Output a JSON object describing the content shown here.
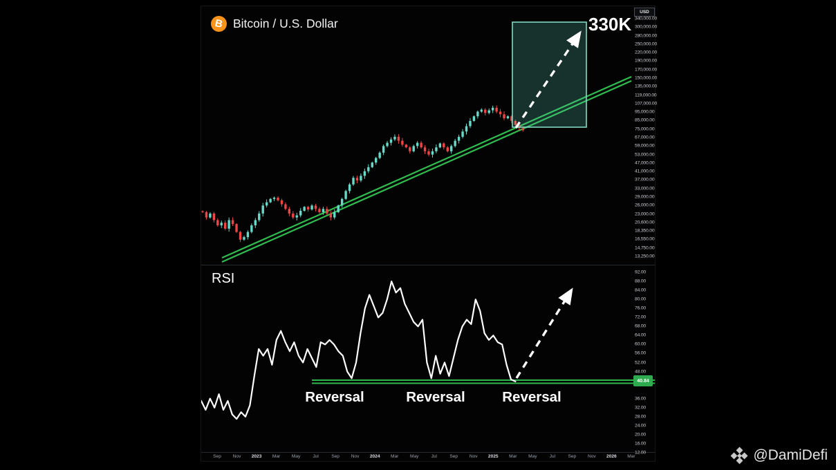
{
  "window": {
    "symbol_title": "Bitcoin / U.S. Dollar",
    "btc_glyph": "B",
    "currency_label": "USD"
  },
  "annotations": {
    "price_target": "330K",
    "rsi_label": "RSI",
    "rsi_current_value": "40.84",
    "reversal_labels": [
      "Reversal",
      "Reversal",
      "Reversal"
    ]
  },
  "watermark": {
    "handle": "@DamiDefi",
    "icon": "binance-diamond-icon"
  },
  "colors": {
    "background": "#000000",
    "up_candle": "#66d9c8",
    "down_candle": "#ef4545",
    "trendline_green": "#2fbc4f",
    "support_green": "#2db84d",
    "projection_box_border": "#82dac5",
    "projection_box_fill": "rgba(95,220,190,0.22)",
    "arrow_white": "#ffffff",
    "rsi_line": "#ffffff",
    "btc_orange": "#f7931a",
    "rsi_badge_bg": "#2dab4e",
    "axis_text": "#c6c9d0"
  },
  "price_axis_labels": [
    "340,000.00",
    "300,000.00",
    "280,000.00",
    "250,000.00",
    "220,000.00",
    "190,000.00",
    "170,000.00",
    "150,000.00",
    "135,000.00",
    "119,000.00",
    "107,000.00",
    "95,000.00",
    "85,000.00",
    "75,000.00",
    "67,000.00",
    "59,000.00",
    "53,000.00",
    "47,000.00",
    "41,000.00",
    "37,000.00",
    "33,000.00",
    "29,000.00",
    "26,000.00",
    "23,000.00",
    "20,600.00",
    "18,350.00",
    "16,550.00",
    "14,750.00",
    "13,250.00"
  ],
  "rsi_axis_labels": [
    "92.00",
    "88.00",
    "84.00",
    "80.00",
    "76.00",
    "72.00",
    "68.00",
    "64.00",
    "60.00",
    "56.00",
    "52.00",
    "48.00",
    "",
    "",
    "36.00",
    "32.00",
    "28.00",
    "24.00",
    "20.00",
    "16.00",
    "12.00"
  ],
  "time_axis_labels": [
    "Sep",
    "Nov",
    "2023",
    "Mar",
    "May",
    "Jul",
    "Sep",
    "Nov",
    "2024",
    "Mar",
    "May",
    "Jul",
    "Sep",
    "Nov",
    "2025",
    "Mar",
    "May",
    "Jul",
    "Sep",
    "Nov",
    "2026",
    "Mar"
  ],
  "chart_data": {
    "type": "candlestick",
    "title": "Bitcoin / U.S. Dollar",
    "legend_position": "top-left",
    "grid": false,
    "price_panel": {
      "y_scale": "log",
      "y_axis_top_usd": 340000,
      "y_axis_bottom_usd": 13250,
      "weekly_closes_usd": [
        24250,
        22550,
        23800,
        21750,
        20250,
        21000,
        19350,
        21750,
        20600,
        18500,
        16650,
        17250,
        18500,
        20250,
        21750,
        23800,
        26550,
        27750,
        29050,
        29550,
        28500,
        27000,
        25350,
        23800,
        22550,
        23200,
        24700,
        26050,
        25150,
        26550,
        25350,
        24250,
        25350,
        23800,
        22550,
        24250,
        26550,
        29050,
        32350,
        35400,
        38750,
        37350,
        39800,
        42400,
        44800,
        47700,
        50800,
        54600,
        59750,
        62500,
        65400,
        67800,
        64250,
        60850,
        58700,
        55650,
        59750,
        62500,
        58700,
        55650,
        53200,
        55650,
        58700,
        61950,
        58700,
        55650,
        59750,
        64250,
        67800,
        72900,
        78400,
        84200,
        89700,
        95600,
        98200,
        93900,
        97300,
        100800,
        95600,
        92200,
        87300,
        89700,
        84200,
        79800,
        76300,
        74200
      ],
      "trendline_channel_usd": {
        "start": 14200,
        "end": 148000,
        "style": "parallel-double-line"
      },
      "projection": {
        "target_label": "330K",
        "box_top_usd": 299000,
        "box_bottom_usd": 75500,
        "arrow": "dashed-up-right"
      }
    },
    "rsi_panel": {
      "indicator": "RSI",
      "range": [
        12,
        92
      ],
      "support_level": 43.6,
      "current_value": 40.84,
      "series": [
        35,
        31,
        36,
        32,
        38,
        31,
        35,
        29,
        27,
        30,
        28,
        33,
        46,
        58,
        55,
        58,
        51,
        62,
        66,
        61,
        57,
        61,
        55,
        52,
        58,
        54,
        50,
        61,
        60,
        62,
        60,
        57,
        55,
        48,
        45,
        52,
        65,
        76,
        82,
        77,
        72,
        74,
        80,
        88,
        83,
        85,
        78,
        74,
        70,
        68,
        71,
        52,
        45,
        55,
        47,
        52,
        46,
        54,
        62,
        68,
        71,
        69,
        80,
        75,
        65,
        62,
        64,
        61,
        60,
        51,
        44.5,
        43.6
      ],
      "reversal_touch_count": 3,
      "arrow": "dashed-up-right"
    }
  }
}
